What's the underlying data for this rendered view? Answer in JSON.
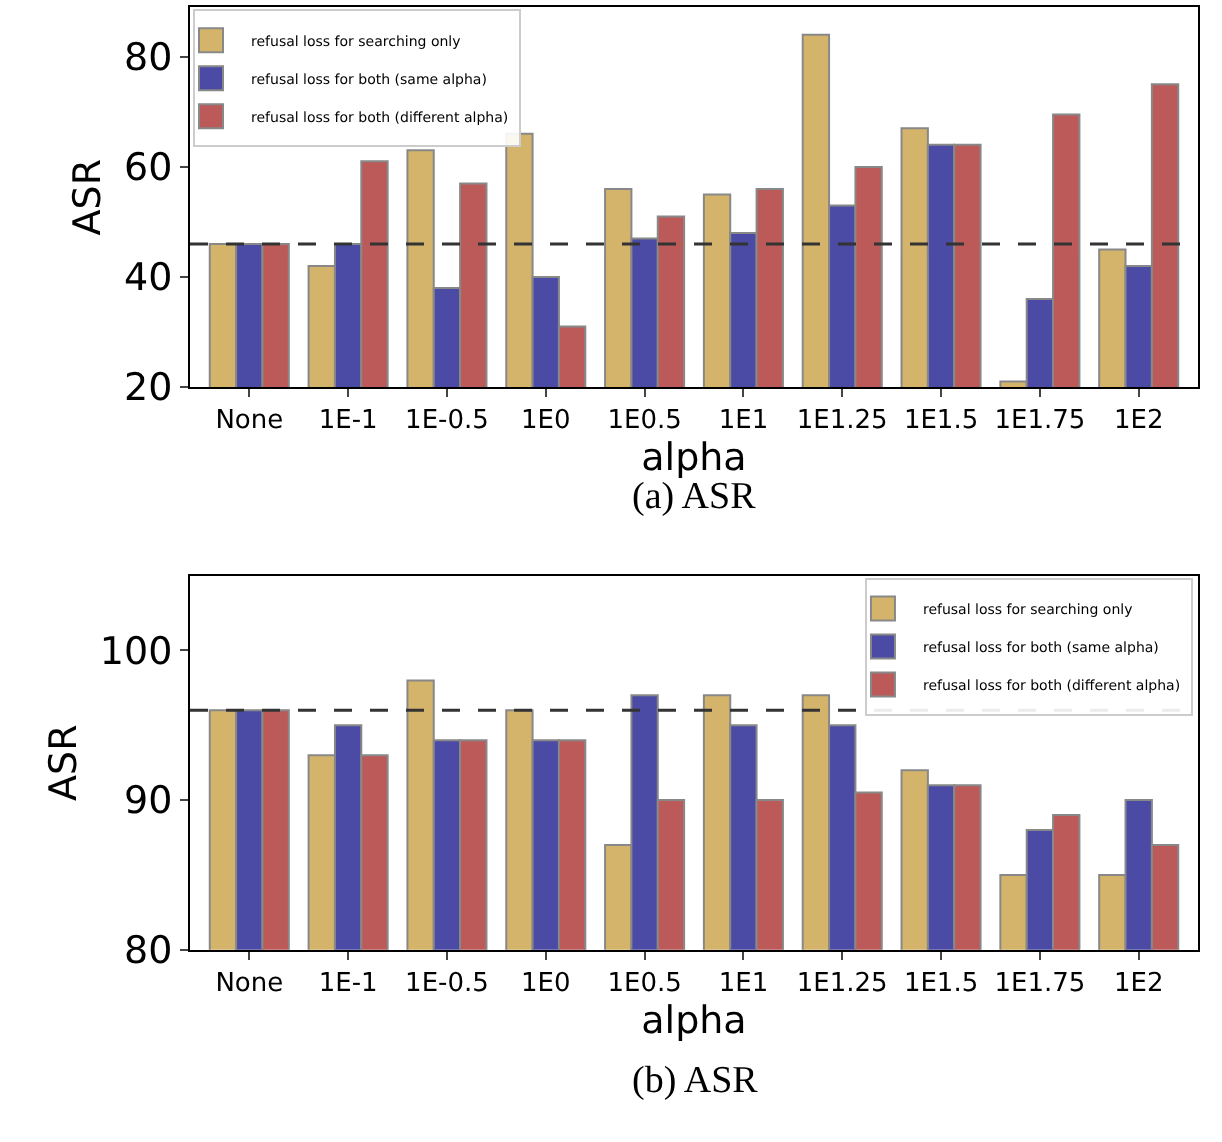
{
  "chart_data": [
    {
      "type": "bar",
      "xlabel": "alpha",
      "ylabel": "ASR",
      "categories": [
        "None",
        "1E-1",
        "1E-0.5",
        "1E0",
        "1E0.5",
        "1E1",
        "1E1.25",
        "1E1.5",
        "1E1.75",
        "1E2"
      ],
      "series": [
        {
          "name": "refusal loss for searching only",
          "color": "#d4b46a",
          "values": [
            46,
            42,
            63,
            66,
            56,
            55,
            84,
            67,
            21,
            45
          ]
        },
        {
          "name": "refusal loss for both (same alpha)",
          "color": "#4b4ba6",
          "values": [
            46,
            46,
            38,
            40,
            47,
            48,
            53,
            64,
            36,
            42
          ]
        },
        {
          "name": "refusal loss for both (different alpha)",
          "color": "#bc5a5a",
          "values": [
            46,
            61,
            57,
            31,
            51,
            56,
            60,
            64,
            69.5,
            75
          ]
        }
      ],
      "ylim": [
        20,
        89
      ],
      "yticks": [
        20,
        40,
        60,
        80
      ],
      "ref_lines": [
        {
          "axis": "y",
          "value": 46,
          "line_style": "dashed",
          "color": "#333333"
        }
      ],
      "legend": "top left",
      "annotations": [
        "(a) ASR"
      ]
    },
    {
      "type": "bar",
      "xlabel": "alpha",
      "ylabel": "ASR",
      "categories": [
        "None",
        "1E-1",
        "1E-0.5",
        "1E0",
        "1E0.5",
        "1E1",
        "1E1.25",
        "1E1.5",
        "1E1.75",
        "1E2"
      ],
      "series": [
        {
          "name": "refusal loss for searching only",
          "color": "#d4b46a",
          "values": [
            96,
            93,
            98,
            96,
            87,
            97,
            97,
            92,
            85,
            85
          ]
        },
        {
          "name": "refusal loss for both (same alpha)",
          "color": "#4b4ba6",
          "values": [
            96,
            95,
            94,
            94,
            97,
            95,
            95,
            91,
            88,
            90
          ]
        },
        {
          "name": "refusal loss for both (different alpha)",
          "color": "#bc5a5a",
          "values": [
            96,
            93,
            94,
            94,
            90,
            90,
            90.5,
            91,
            89,
            87
          ]
        }
      ],
      "ylim": [
        80,
        105
      ],
      "yticks": [
        80,
        90,
        100
      ],
      "ref_lines": [
        {
          "axis": "y",
          "value": 96,
          "line_style": "dashed",
          "color": "#333333"
        }
      ],
      "legend": "top right",
      "annotations": [
        "(b) ASR"
      ]
    }
  ]
}
